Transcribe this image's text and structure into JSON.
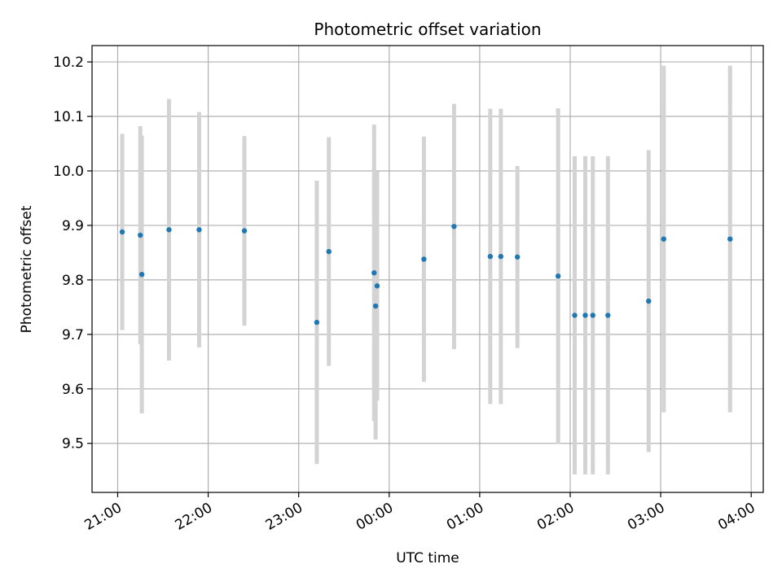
{
  "chart_data": {
    "type": "scatter",
    "title": "Photometric offset variation",
    "xlabel": "UTC time",
    "ylabel": "Photometric offset",
    "x_axis_kind": "time",
    "x_ticks": [
      "21:00",
      "22:00",
      "23:00",
      "00:00",
      "01:00",
      "02:00",
      "03:00",
      "04:00"
    ],
    "x_tick_hours": [
      21,
      22,
      23,
      24,
      25,
      26,
      27,
      28
    ],
    "xlim": [
      "20:43",
      "04:08"
    ],
    "y_ticks": [
      "9.5",
      "9.6",
      "9.7",
      "9.8",
      "9.9",
      "10.0",
      "10.1",
      "10.2"
    ],
    "ylim": [
      9.41,
      10.23
    ],
    "grid": true,
    "colors": {
      "point": "#1f77b4",
      "errorbar": "#d3d3d3",
      "grid": "#b0b0b0"
    },
    "points": [
      {
        "time": "21:03",
        "y": 9.888,
        "yerr": 0.18
      },
      {
        "time": "21:15",
        "y": 9.882,
        "yerr": 0.2
      },
      {
        "time": "21:16",
        "y": 9.81,
        "yerr": 0.255
      },
      {
        "time": "21:34",
        "y": 9.892,
        "yerr": 0.24
      },
      {
        "time": "21:54",
        "y": 9.892,
        "yerr": 0.216
      },
      {
        "time": "22:24",
        "y": 9.89,
        "yerr": 0.174
      },
      {
        "time": "23:12",
        "y": 9.722,
        "yerr": 0.26
      },
      {
        "time": "23:20",
        "y": 9.852,
        "yerr": 0.21
      },
      {
        "time": "23:50",
        "y": 9.813,
        "yerr": 0.272
      },
      {
        "time": "23:52",
        "y": 9.789,
        "yerr": 0.21
      },
      {
        "time": "23:51",
        "y": 9.752,
        "yerr": 0.245
      },
      {
        "time": "00:23",
        "y": 9.838,
        "yerr": 0.225
      },
      {
        "time": "00:43",
        "y": 9.898,
        "yerr": 0.225
      },
      {
        "time": "01:07",
        "y": 9.843,
        "yerr": 0.271
      },
      {
        "time": "01:14",
        "y": 9.843,
        "yerr": 0.271
      },
      {
        "time": "01:25",
        "y": 9.842,
        "yerr": 0.167
      },
      {
        "time": "01:52",
        "y": 9.807,
        "yerr": 0.308
      },
      {
        "time": "02:03",
        "y": 9.735,
        "yerr": 0.292
      },
      {
        "time": "02:10",
        "y": 9.735,
        "yerr": 0.292
      },
      {
        "time": "02:15",
        "y": 9.735,
        "yerr": 0.292
      },
      {
        "time": "02:25",
        "y": 9.735,
        "yerr": 0.292
      },
      {
        "time": "02:52",
        "y": 9.761,
        "yerr": 0.277
      },
      {
        "time": "03:02",
        "y": 9.875,
        "yerr": 0.318
      },
      {
        "time": "03:46",
        "y": 9.875,
        "yerr": 0.318
      }
    ]
  }
}
